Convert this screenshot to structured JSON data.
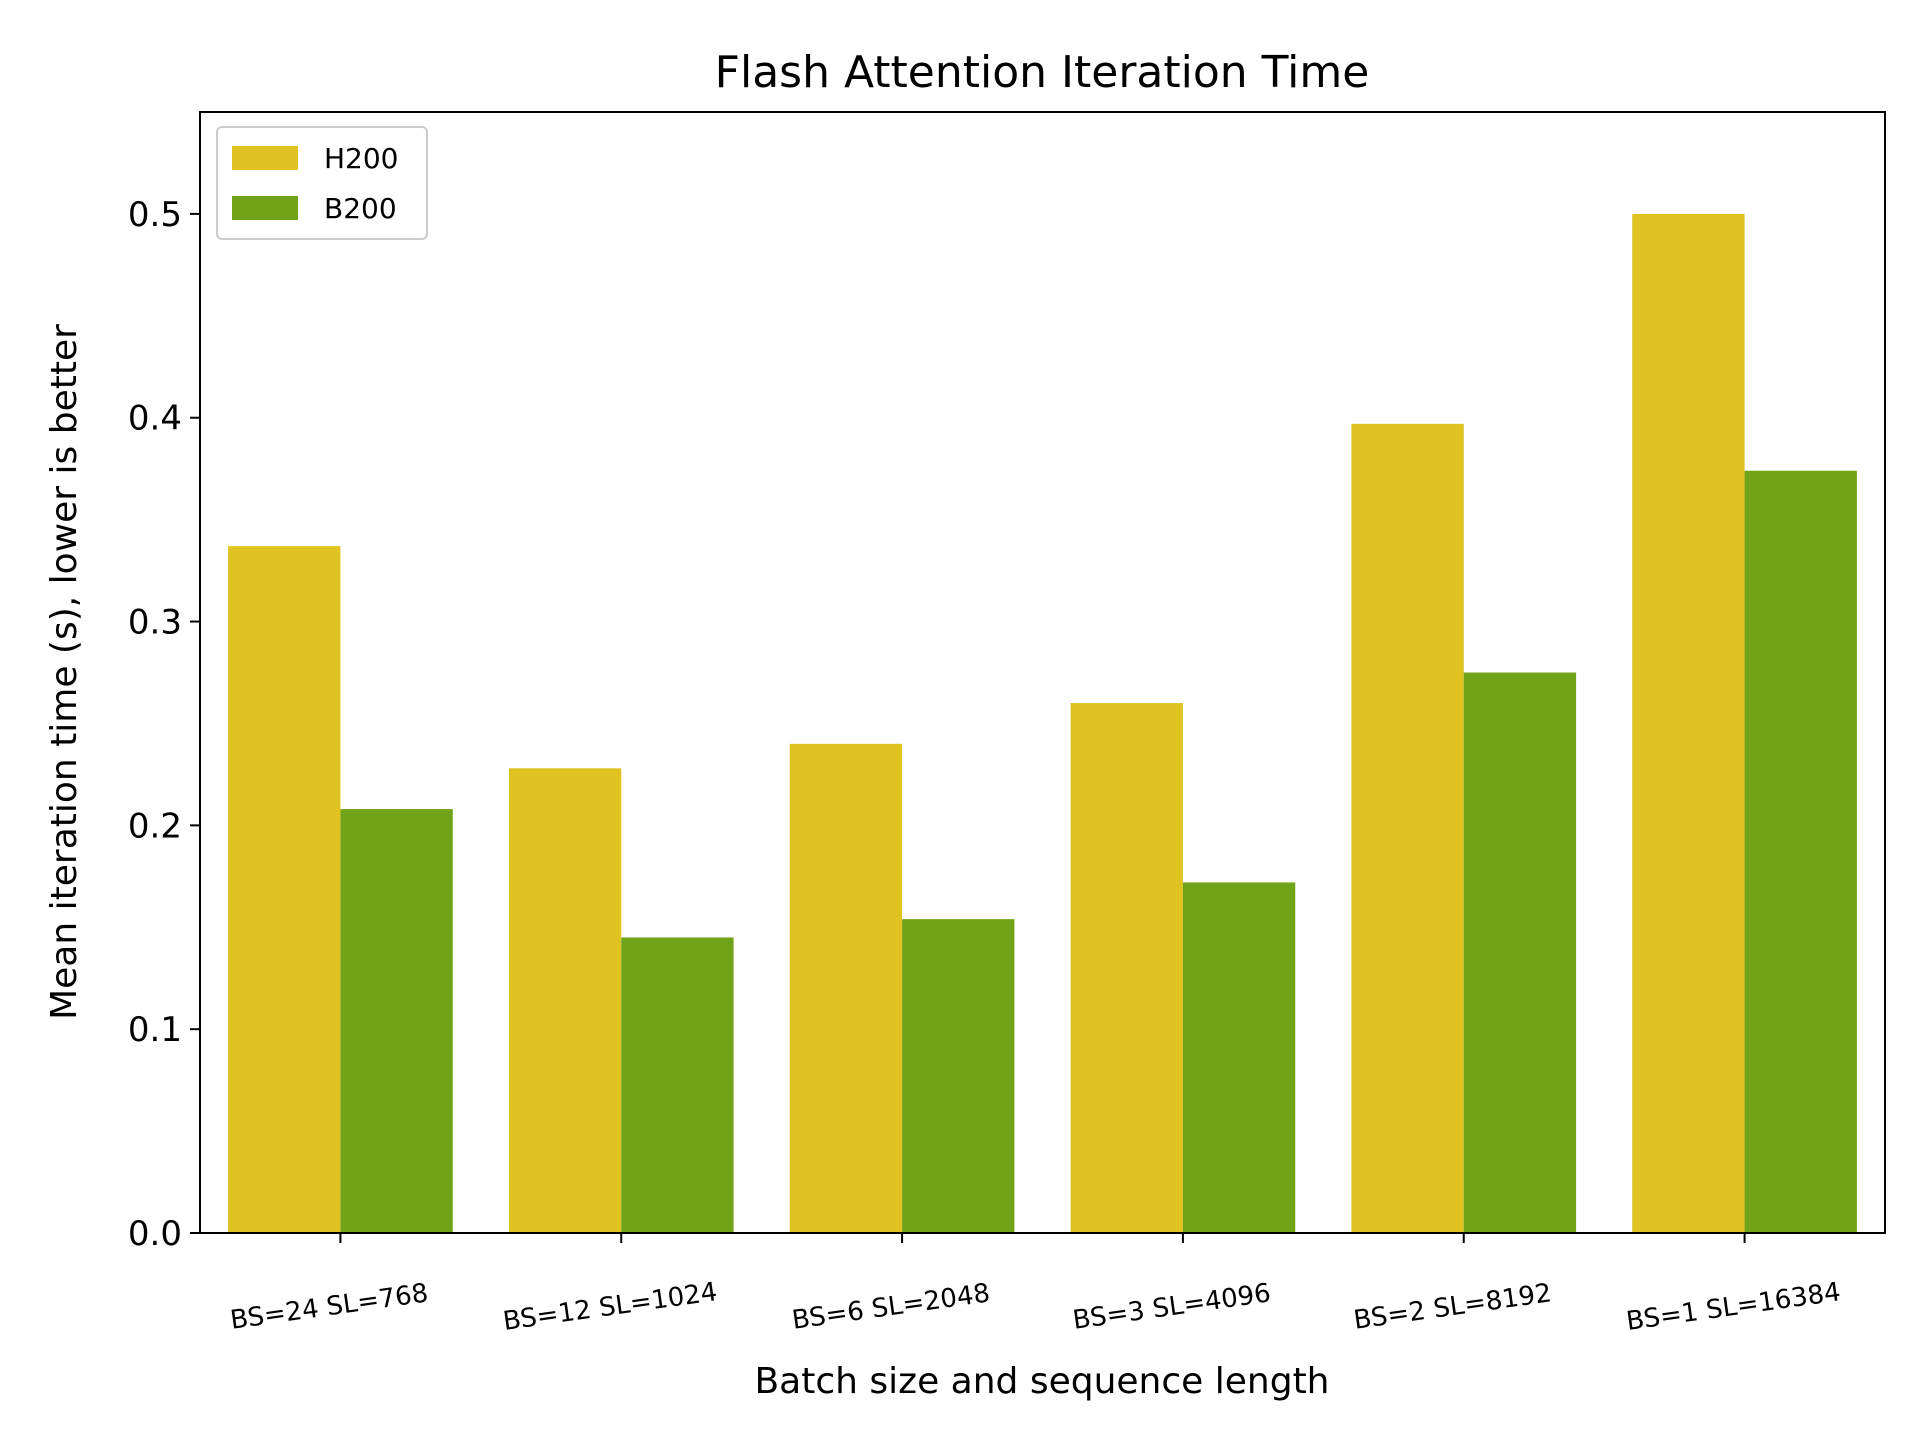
{
  "chart_data": {
    "type": "bar",
    "title": "Flash Attention Iteration Time",
    "xlabel": "Batch size and sequence length",
    "ylabel": "Mean iteration time (s), lower is better",
    "categories": [
      "BS=24 SL=768",
      "BS=12 SL=1024",
      "BS=6 SL=2048",
      "BS=3 SL=4096",
      "BS=2 SL=8192",
      "BS=1 SL=16384"
    ],
    "series": [
      {
        "name": "H200",
        "color": "#e0c220",
        "values": [
          0.337,
          0.228,
          0.24,
          0.26,
          0.397,
          0.5
        ]
      },
      {
        "name": "B200",
        "color": "#71a318",
        "values": [
          0.208,
          0.145,
          0.154,
          0.172,
          0.275,
          0.374
        ]
      }
    ],
    "ylim": [
      0,
      0.55
    ],
    "yticks": [
      "0.0",
      "0.1",
      "0.2",
      "0.3",
      "0.4",
      "0.5"
    ],
    "grid": false,
    "legend_position": "top-left"
  }
}
